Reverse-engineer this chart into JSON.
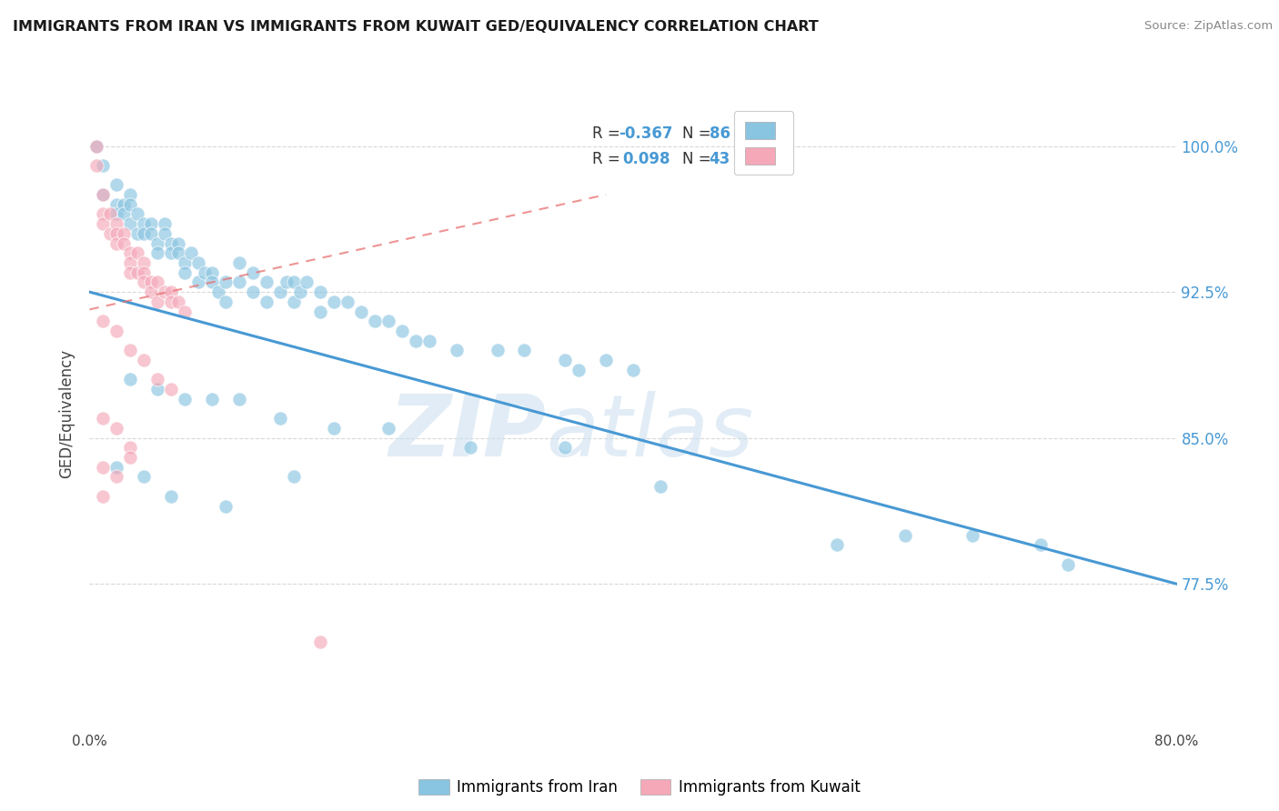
{
  "title": "IMMIGRANTS FROM IRAN VS IMMIGRANTS FROM KUWAIT GED/EQUIVALENCY CORRELATION CHART",
  "source": "Source: ZipAtlas.com",
  "ylabel": "GED/Equivalency",
  "ytick_labels": [
    "100.0%",
    "92.5%",
    "85.0%",
    "77.5%"
  ],
  "ytick_values": [
    1.0,
    0.925,
    0.85,
    0.775
  ],
  "xlim": [
    0.0,
    0.8
  ],
  "ylim": [
    0.7,
    1.025
  ],
  "iran_color": "#89c4e1",
  "kuwait_color": "#f4a8b8",
  "iran_R": -0.367,
  "iran_N": 86,
  "kuwait_R": 0.098,
  "kuwait_N": 43,
  "legend_label_iran": "Immigrants from Iran",
  "legend_label_kuwait": "Immigrants from Kuwait",
  "iran_line_color": "#4899d4",
  "kuwait_line_color": "#e87070",
  "iran_line_x0": 0.0,
  "iran_line_y0": 0.925,
  "iran_line_x1": 0.8,
  "iran_line_y1": 0.775,
  "kuwait_line_x0": 0.0,
  "kuwait_line_y0": 0.916,
  "kuwait_line_x1": 0.38,
  "kuwait_line_y1": 0.975,
  "iran_scatter_x": [
    0.005,
    0.01,
    0.01,
    0.02,
    0.02,
    0.02,
    0.025,
    0.025,
    0.03,
    0.03,
    0.03,
    0.035,
    0.035,
    0.04,
    0.04,
    0.045,
    0.045,
    0.05,
    0.05,
    0.055,
    0.055,
    0.06,
    0.06,
    0.065,
    0.065,
    0.07,
    0.07,
    0.075,
    0.08,
    0.08,
    0.085,
    0.09,
    0.09,
    0.095,
    0.1,
    0.1,
    0.11,
    0.11,
    0.12,
    0.12,
    0.13,
    0.13,
    0.14,
    0.145,
    0.15,
    0.15,
    0.155,
    0.16,
    0.17,
    0.17,
    0.18,
    0.19,
    0.2,
    0.21,
    0.22,
    0.23,
    0.24,
    0.25,
    0.27,
    0.3,
    0.32,
    0.35,
    0.36,
    0.38,
    0.4,
    0.03,
    0.05,
    0.07,
    0.09,
    0.11,
    0.14,
    0.18,
    0.22,
    0.28,
    0.35,
    0.02,
    0.04,
    0.15,
    0.42,
    0.06,
    0.1,
    0.6,
    0.55,
    0.65,
    0.7,
    0.72
  ],
  "iran_scatter_y": [
    1.0,
    0.99,
    0.975,
    0.98,
    0.97,
    0.965,
    0.97,
    0.965,
    0.975,
    0.97,
    0.96,
    0.965,
    0.955,
    0.96,
    0.955,
    0.96,
    0.955,
    0.95,
    0.945,
    0.96,
    0.955,
    0.95,
    0.945,
    0.95,
    0.945,
    0.94,
    0.935,
    0.945,
    0.94,
    0.93,
    0.935,
    0.935,
    0.93,
    0.925,
    0.93,
    0.92,
    0.94,
    0.93,
    0.935,
    0.925,
    0.93,
    0.92,
    0.925,
    0.93,
    0.93,
    0.92,
    0.925,
    0.93,
    0.925,
    0.915,
    0.92,
    0.92,
    0.915,
    0.91,
    0.91,
    0.905,
    0.9,
    0.9,
    0.895,
    0.895,
    0.895,
    0.89,
    0.885,
    0.89,
    0.885,
    0.88,
    0.875,
    0.87,
    0.87,
    0.87,
    0.86,
    0.855,
    0.855,
    0.845,
    0.845,
    0.835,
    0.83,
    0.83,
    0.825,
    0.82,
    0.815,
    0.8,
    0.795,
    0.8,
    0.795,
    0.785
  ],
  "kuwait_scatter_x": [
    0.005,
    0.005,
    0.01,
    0.01,
    0.01,
    0.015,
    0.015,
    0.02,
    0.02,
    0.02,
    0.025,
    0.025,
    0.03,
    0.03,
    0.03,
    0.035,
    0.035,
    0.04,
    0.04,
    0.04,
    0.045,
    0.045,
    0.05,
    0.05,
    0.055,
    0.06,
    0.06,
    0.065,
    0.07,
    0.01,
    0.02,
    0.03,
    0.04,
    0.05,
    0.06,
    0.01,
    0.02,
    0.03,
    0.01,
    0.02,
    0.01,
    0.17,
    0.03
  ],
  "kuwait_scatter_y": [
    1.0,
    0.99,
    0.975,
    0.965,
    0.96,
    0.965,
    0.955,
    0.96,
    0.955,
    0.95,
    0.955,
    0.95,
    0.945,
    0.94,
    0.935,
    0.945,
    0.935,
    0.94,
    0.935,
    0.93,
    0.93,
    0.925,
    0.93,
    0.92,
    0.925,
    0.925,
    0.92,
    0.92,
    0.915,
    0.91,
    0.905,
    0.895,
    0.89,
    0.88,
    0.875,
    0.86,
    0.855,
    0.845,
    0.835,
    0.83,
    0.82,
    0.745,
    0.84
  ],
  "watermark_zip": "ZIP",
  "watermark_atlas": "atlas",
  "background_color": "#ffffff",
  "grid_color": "#d8d8d8",
  "legend_R_color": "#4da6e8",
  "legend_N_color": "#333333"
}
